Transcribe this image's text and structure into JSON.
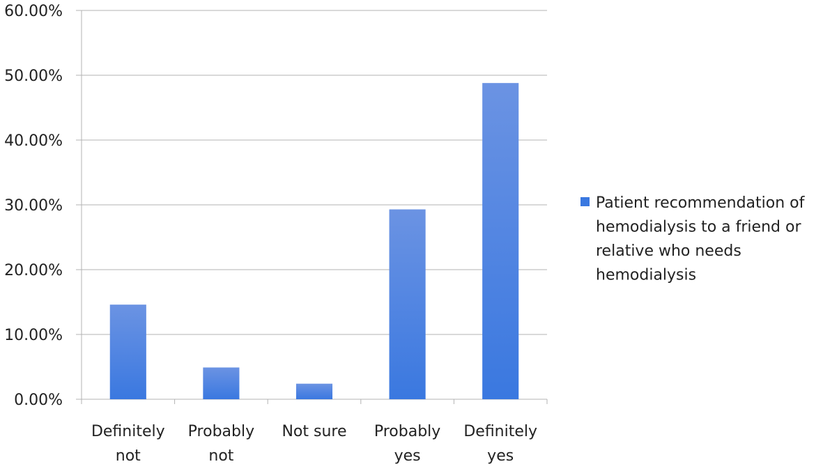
{
  "chart_data": {
    "type": "bar",
    "categories": [
      [
        "Definitely",
        "not"
      ],
      [
        "Probably",
        "not"
      ],
      [
        "Not sure"
      ],
      [
        "Probably",
        "yes"
      ],
      [
        "Definitely",
        "yes"
      ]
    ],
    "series": [
      {
        "name": "Patient recommendation of hemodialysis to a friend or relative who needs hemodialysis",
        "legend_lines": [
          "Patient recommendation of",
          "hemodialysis to a friend or",
          "relative who needs",
          "hemodialysis"
        ],
        "values": [
          14.6,
          4.9,
          2.4,
          29.3,
          48.8
        ],
        "color_top": "#6b93e3",
        "color_bottom": "#3a78e0"
      }
    ],
    "ylim": [
      0,
      60
    ],
    "yticks": [
      "0.00%",
      "10.00%",
      "20.00%",
      "30.00%",
      "40.00%",
      "50.00%",
      "60.00%"
    ],
    "ytick_values": [
      0,
      10,
      20,
      30,
      40,
      50,
      60
    ],
    "grid": true,
    "legend_position": "right",
    "gridline_color": "#b3b3b3"
  }
}
